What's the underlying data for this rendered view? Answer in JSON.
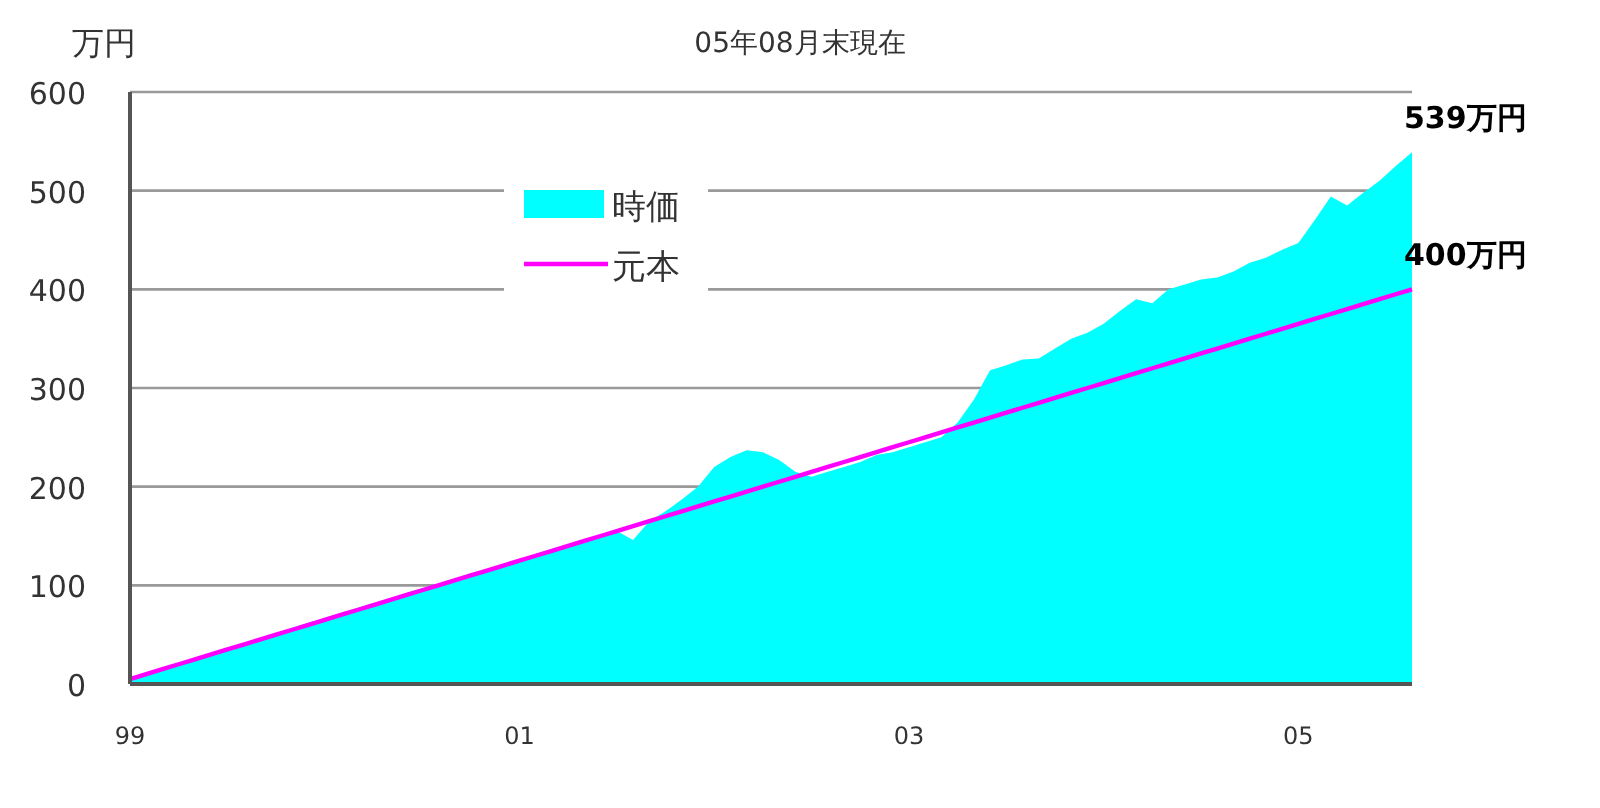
{
  "chart_data": {
    "type": "area",
    "title": "05年08月末現在",
    "ylabel": "万円",
    "x": [
      "1999-01",
      "1999-02",
      "1999-03",
      "1999-04",
      "1999-05",
      "1999-06",
      "1999-07",
      "1999-08",
      "1999-09",
      "1999-10",
      "1999-11",
      "1999-12",
      "2000-01",
      "2000-02",
      "2000-03",
      "2000-04",
      "2000-05",
      "2000-06",
      "2000-07",
      "2000-08",
      "2000-09",
      "2000-10",
      "2000-11",
      "2000-12",
      "2001-01",
      "2001-02",
      "2001-03",
      "2001-04",
      "2001-05",
      "2001-06",
      "2001-07",
      "2001-08",
      "2001-09",
      "2001-10",
      "2001-11",
      "2001-12",
      "2002-01",
      "2002-02",
      "2002-03",
      "2002-04",
      "2002-05",
      "2002-06",
      "2002-07",
      "2002-08",
      "2002-09",
      "2002-10",
      "2002-11",
      "2002-12",
      "2003-01",
      "2003-02",
      "2003-03",
      "2003-04",
      "2003-05",
      "2003-06",
      "2003-07",
      "2003-08",
      "2003-09",
      "2003-10",
      "2003-11",
      "2003-12",
      "2004-01",
      "2004-02",
      "2004-03",
      "2004-04",
      "2004-05",
      "2004-06",
      "2004-07",
      "2004-08",
      "2004-09",
      "2004-10",
      "2004-11",
      "2004-12",
      "2005-01",
      "2005-02",
      "2005-03",
      "2005-04",
      "2005-05",
      "2005-06",
      "2005-07",
      "2005-08"
    ],
    "series": [
      {
        "name": "時価",
        "color": "#00ffff",
        "values": [
          5,
          10,
          15,
          20,
          25,
          31,
          36,
          41,
          46,
          51,
          57,
          62,
          67,
          72,
          77,
          82,
          86,
          92,
          97,
          100,
          106,
          110,
          116,
          120,
          125,
          132,
          136,
          140,
          146,
          150,
          155,
          146,
          165,
          175,
          187,
          200,
          220,
          230,
          237,
          235,
          227,
          215,
          210,
          215,
          220,
          225,
          232,
          235,
          240,
          245,
          250,
          265,
          288,
          318,
          323,
          329,
          330,
          340,
          350,
          356,
          365,
          378,
          390,
          386,
          400,
          405,
          410,
          412,
          418,
          427,
          432,
          440,
          447,
          470,
          494,
          485,
          498,
          510,
          525,
          539
        ]
      },
      {
        "name": "元本",
        "type": "line",
        "color": "#ff00ff",
        "values": [
          5,
          10,
          15,
          20,
          25,
          30,
          35,
          40,
          45,
          50,
          55,
          60,
          65,
          70,
          75,
          80,
          85,
          90,
          95,
          100,
          105,
          110,
          115,
          120,
          125,
          130,
          135,
          140,
          145,
          150,
          155,
          160,
          165,
          170,
          175,
          180,
          185,
          190,
          195,
          200,
          205,
          210,
          215,
          220,
          225,
          230,
          235,
          240,
          245,
          250,
          255,
          260,
          265,
          270,
          275,
          280,
          285,
          290,
          295,
          300,
          305,
          310,
          315,
          320,
          325,
          330,
          335,
          340,
          345,
          350,
          355,
          360,
          365,
          370,
          375,
          380,
          385,
          390,
          395,
          400
        ]
      }
    ],
    "xlim": [
      "1999-01",
      "2005-08"
    ],
    "xticks": [
      {
        "value": "1999-01",
        "label": "99"
      },
      {
        "value": "2001-01",
        "label": "01"
      },
      {
        "value": "2003-01",
        "label": "03"
      },
      {
        "value": "2005-01",
        "label": "05"
      }
    ],
    "ylim": [
      0,
      600
    ],
    "yticks": [
      0,
      100,
      200,
      300,
      400,
      500,
      600
    ],
    "grid": "y",
    "legend": "top",
    "annotations": [
      {
        "text": "539万円",
        "x": "2005-08",
        "y": 539
      },
      {
        "text": "400万円",
        "x": "2005-08",
        "y": 400
      }
    ]
  }
}
